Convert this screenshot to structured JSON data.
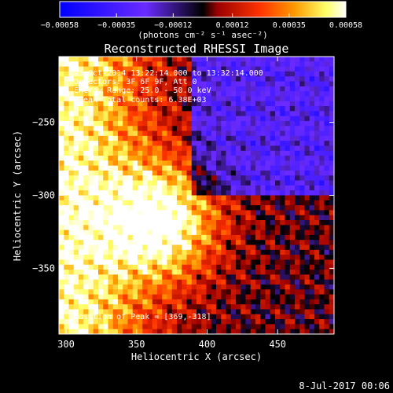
{
  "chart_data": {
    "type": "heatmap",
    "title": "Reconstructed RHESSI Image",
    "xlabel": "Heliocentric X (arcsec)",
    "ylabel": "Heliocentric Y (arcsec)",
    "xlim": [
      295,
      490
    ],
    "ylim": [
      -395,
      -205
    ],
    "xticks": [
      300,
      350,
      400,
      450
    ],
    "xtick_labels": [
      "300",
      "350",
      "400",
      "450"
    ],
    "yticks": [
      -250,
      -300,
      -350
    ],
    "ytick_labels": [
      "−250",
      "−300",
      "−350"
    ],
    "colorbar": {
      "range": [
        -0.00058,
        0.00058
      ],
      "ticks": [
        -0.00058,
        -0.00035,
        -0.00012,
        0.00012,
        0.00035,
        0.00058
      ],
      "tick_labels": [
        "−0.00058",
        "−0.00035",
        "−0.00012",
        "0.00012",
        "0.00035",
        "0.00058"
      ],
      "unit_label": "(photons cm⁻² s⁻¹ asec⁻²)",
      "colors": [
        "#0000ff",
        "#6a2bff",
        "#000000",
        "#990000",
        "#ff3300",
        "#ff9900",
        "#ffff66",
        "#ffffff"
      ]
    },
    "info_lines": [
      "25-Oct-2014 13:22:14.000 to 13:32:14.000",
      "Detectors: 3F 6F 9F, Att 0",
      "Energy Range: 25.0 - 50.0 keV",
      "Clean    Total counts: 6.38E+03"
    ],
    "peak_text": "Position of Peak = [369,-318]",
    "peak": [
      369,
      -318
    ],
    "peak_value": 0.00058
  },
  "footer": {
    "timestamp": "8-Jul-2017 00:06"
  }
}
